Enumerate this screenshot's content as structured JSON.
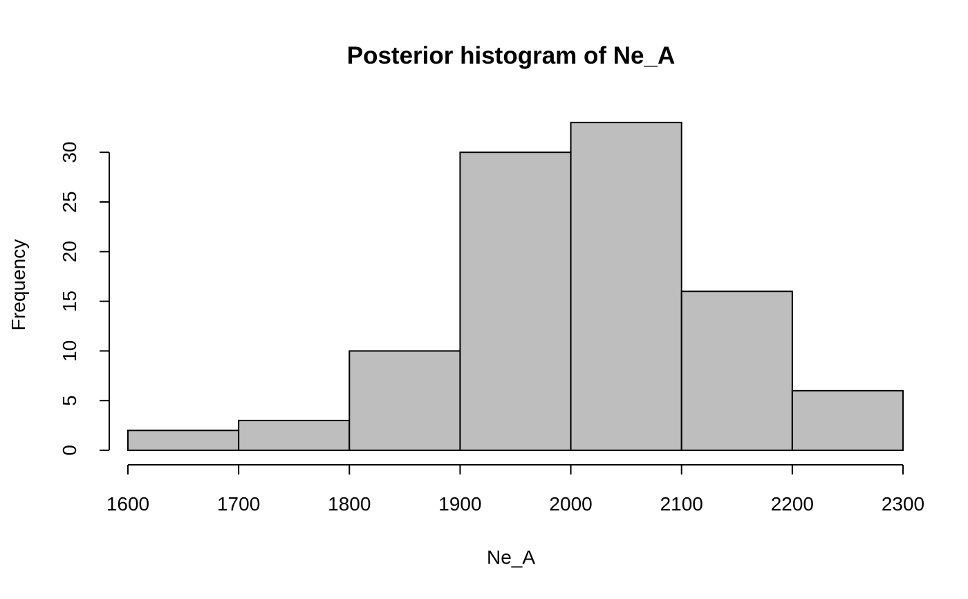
{
  "chart_data": {
    "type": "bar",
    "title": "Posterior histogram of Ne_A",
    "xlabel": "Ne_A",
    "ylabel": "Frequency",
    "bins": [
      {
        "from": 1600,
        "to": 1700,
        "count": 2
      },
      {
        "from": 1700,
        "to": 1800,
        "count": 3
      },
      {
        "from": 1800,
        "to": 1900,
        "count": 10
      },
      {
        "from": 1900,
        "to": 2000,
        "count": 30
      },
      {
        "from": 2000,
        "to": 2100,
        "count": 33
      },
      {
        "from": 2100,
        "to": 2200,
        "count": 16
      },
      {
        "from": 2200,
        "to": 2300,
        "count": 6
      }
    ],
    "x_ticks": [
      1600,
      1700,
      1800,
      1900,
      2000,
      2100,
      2200,
      2300
    ],
    "y_ticks": [
      0,
      5,
      10,
      15,
      20,
      25,
      30
    ],
    "xlim": [
      1600,
      2300
    ],
    "ylim": [
      0,
      33
    ],
    "bar_color": "#bebebe",
    "grid": false
  }
}
